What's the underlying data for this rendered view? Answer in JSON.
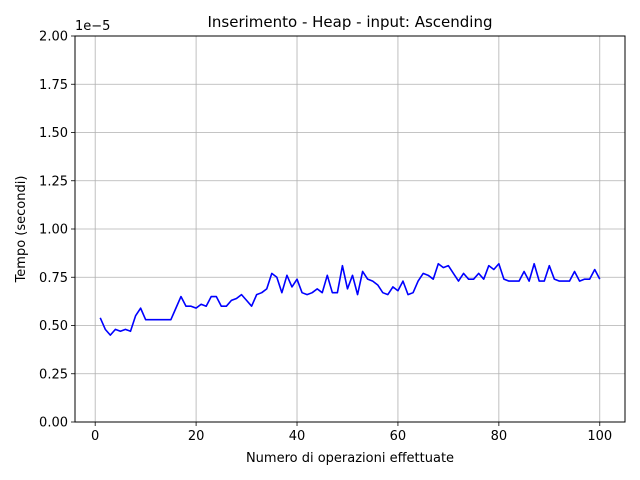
{
  "chart_data": {
    "type": "line",
    "title": "Inserimento - Heap - input: Ascending",
    "xlabel": "Numero di operazioni effettuate",
    "ylabel": "Tempo (secondi)",
    "offset_label": "1e−5",
    "xlim": [
      -4,
      105
    ],
    "ylim": [
      0,
      2.0
    ],
    "xticks": [
      0,
      20,
      40,
      60,
      80,
      100
    ],
    "xtick_labels": [
      "0",
      "20",
      "40",
      "60",
      "80",
      "100"
    ],
    "yticks": [
      0,
      0.25,
      0.5,
      0.75,
      1.0,
      1.25,
      1.5,
      1.75,
      2.0
    ],
    "ytick_labels": [
      "0.00",
      "0.25",
      "0.50",
      "0.75",
      "1.00",
      "1.25",
      "1.50",
      "1.75",
      "2.00"
    ],
    "grid": true,
    "series": [
      {
        "color": "#0000ff",
        "x": [
          1,
          2,
          3,
          4,
          5,
          6,
          7,
          8,
          9,
          10,
          11,
          12,
          13,
          14,
          15,
          16,
          17,
          18,
          19,
          20,
          21,
          22,
          23,
          24,
          25,
          26,
          27,
          28,
          29,
          30,
          31,
          32,
          33,
          34,
          35,
          36,
          37,
          38,
          39,
          40,
          41,
          42,
          43,
          44,
          45,
          46,
          47,
          48,
          49,
          50,
          51,
          52,
          53,
          54,
          55,
          56,
          57,
          58,
          59,
          60,
          61,
          62,
          63,
          64,
          65,
          66,
          67,
          68,
          69,
          70,
          71,
          72,
          73,
          74,
          75,
          76,
          77,
          78,
          79,
          80,
          81,
          82,
          83,
          84,
          85,
          86,
          87,
          88,
          89,
          90,
          91,
          92,
          93,
          94,
          95,
          96,
          97,
          98,
          99,
          100
        ],
        "y": [
          0.54,
          0.48,
          0.45,
          0.48,
          0.47,
          0.48,
          0.47,
          0.55,
          0.59,
          0.53,
          0.53,
          0.53,
          0.53,
          0.53,
          0.53,
          0.59,
          0.65,
          0.6,
          0.6,
          0.59,
          0.61,
          0.6,
          0.65,
          0.65,
          0.6,
          0.6,
          0.63,
          0.64,
          0.66,
          0.63,
          0.6,
          0.66,
          0.67,
          0.69,
          0.77,
          0.75,
          0.67,
          0.76,
          0.7,
          0.74,
          0.67,
          0.66,
          0.67,
          0.69,
          0.67,
          0.76,
          0.67,
          0.67,
          0.81,
          0.69,
          0.76,
          0.66,
          0.78,
          0.74,
          0.73,
          0.71,
          0.67,
          0.66,
          0.7,
          0.68,
          0.73,
          0.66,
          0.67,
          0.73,
          0.77,
          0.76,
          0.74,
          0.82,
          0.8,
          0.81,
          0.77,
          0.73,
          0.77,
          0.74,
          0.74,
          0.77,
          0.74,
          0.81,
          0.79,
          0.82,
          0.74,
          0.73,
          0.73,
          0.73,
          0.78,
          0.73,
          0.82,
          0.73,
          0.73,
          0.81,
          0.74,
          0.73,
          0.73,
          0.73,
          0.78,
          0.73,
          0.74,
          0.74,
          0.79,
          0.74
        ]
      }
    ]
  }
}
